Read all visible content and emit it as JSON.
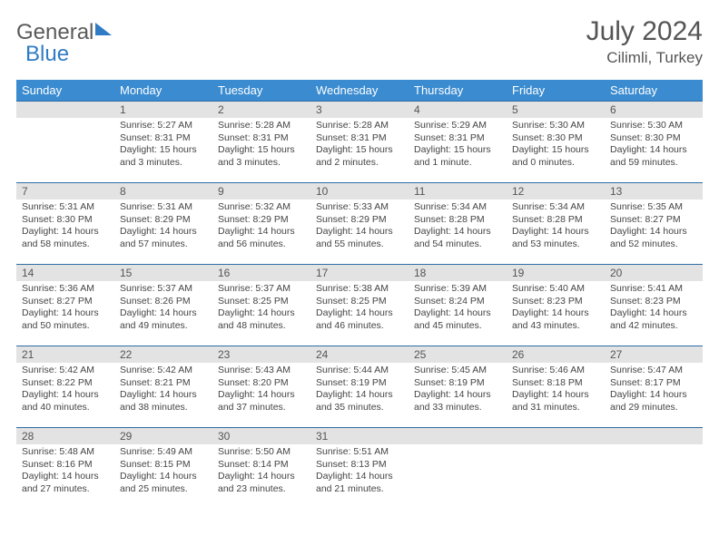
{
  "branding": {
    "name1": "General",
    "name2": "Blue"
  },
  "title": "July 2024",
  "location": "Cilimli, Turkey",
  "weekdays": [
    "Sunday",
    "Monday",
    "Tuesday",
    "Wednesday",
    "Thursday",
    "Friday",
    "Saturday"
  ],
  "colors": {
    "header_bg": "#3a8bd0",
    "daynum_bg": "#e3e3e3",
    "border": "#2e6da4",
    "brand_blue": "#2f7cc4",
    "text": "#444444"
  },
  "leading_blanks": 1,
  "days": [
    {
      "n": 1,
      "sunrise": "5:27 AM",
      "sunset": "8:31 PM",
      "daylight": "15 hours and 3 minutes."
    },
    {
      "n": 2,
      "sunrise": "5:28 AM",
      "sunset": "8:31 PM",
      "daylight": "15 hours and 3 minutes."
    },
    {
      "n": 3,
      "sunrise": "5:28 AM",
      "sunset": "8:31 PM",
      "daylight": "15 hours and 2 minutes."
    },
    {
      "n": 4,
      "sunrise": "5:29 AM",
      "sunset": "8:31 PM",
      "daylight": "15 hours and 1 minute."
    },
    {
      "n": 5,
      "sunrise": "5:30 AM",
      "sunset": "8:30 PM",
      "daylight": "15 hours and 0 minutes."
    },
    {
      "n": 6,
      "sunrise": "5:30 AM",
      "sunset": "8:30 PM",
      "daylight": "14 hours and 59 minutes."
    },
    {
      "n": 7,
      "sunrise": "5:31 AM",
      "sunset": "8:30 PM",
      "daylight": "14 hours and 58 minutes."
    },
    {
      "n": 8,
      "sunrise": "5:31 AM",
      "sunset": "8:29 PM",
      "daylight": "14 hours and 57 minutes."
    },
    {
      "n": 9,
      "sunrise": "5:32 AM",
      "sunset": "8:29 PM",
      "daylight": "14 hours and 56 minutes."
    },
    {
      "n": 10,
      "sunrise": "5:33 AM",
      "sunset": "8:29 PM",
      "daylight": "14 hours and 55 minutes."
    },
    {
      "n": 11,
      "sunrise": "5:34 AM",
      "sunset": "8:28 PM",
      "daylight": "14 hours and 54 minutes."
    },
    {
      "n": 12,
      "sunrise": "5:34 AM",
      "sunset": "8:28 PM",
      "daylight": "14 hours and 53 minutes."
    },
    {
      "n": 13,
      "sunrise": "5:35 AM",
      "sunset": "8:27 PM",
      "daylight": "14 hours and 52 minutes."
    },
    {
      "n": 14,
      "sunrise": "5:36 AM",
      "sunset": "8:27 PM",
      "daylight": "14 hours and 50 minutes."
    },
    {
      "n": 15,
      "sunrise": "5:37 AM",
      "sunset": "8:26 PM",
      "daylight": "14 hours and 49 minutes."
    },
    {
      "n": 16,
      "sunrise": "5:37 AM",
      "sunset": "8:25 PM",
      "daylight": "14 hours and 48 minutes."
    },
    {
      "n": 17,
      "sunrise": "5:38 AM",
      "sunset": "8:25 PM",
      "daylight": "14 hours and 46 minutes."
    },
    {
      "n": 18,
      "sunrise": "5:39 AM",
      "sunset": "8:24 PM",
      "daylight": "14 hours and 45 minutes."
    },
    {
      "n": 19,
      "sunrise": "5:40 AM",
      "sunset": "8:23 PM",
      "daylight": "14 hours and 43 minutes."
    },
    {
      "n": 20,
      "sunrise": "5:41 AM",
      "sunset": "8:23 PM",
      "daylight": "14 hours and 42 minutes."
    },
    {
      "n": 21,
      "sunrise": "5:42 AM",
      "sunset": "8:22 PM",
      "daylight": "14 hours and 40 minutes."
    },
    {
      "n": 22,
      "sunrise": "5:42 AM",
      "sunset": "8:21 PM",
      "daylight": "14 hours and 38 minutes."
    },
    {
      "n": 23,
      "sunrise": "5:43 AM",
      "sunset": "8:20 PM",
      "daylight": "14 hours and 37 minutes."
    },
    {
      "n": 24,
      "sunrise": "5:44 AM",
      "sunset": "8:19 PM",
      "daylight": "14 hours and 35 minutes."
    },
    {
      "n": 25,
      "sunrise": "5:45 AM",
      "sunset": "8:19 PM",
      "daylight": "14 hours and 33 minutes."
    },
    {
      "n": 26,
      "sunrise": "5:46 AM",
      "sunset": "8:18 PM",
      "daylight": "14 hours and 31 minutes."
    },
    {
      "n": 27,
      "sunrise": "5:47 AM",
      "sunset": "8:17 PM",
      "daylight": "14 hours and 29 minutes."
    },
    {
      "n": 28,
      "sunrise": "5:48 AM",
      "sunset": "8:16 PM",
      "daylight": "14 hours and 27 minutes."
    },
    {
      "n": 29,
      "sunrise": "5:49 AM",
      "sunset": "8:15 PM",
      "daylight": "14 hours and 25 minutes."
    },
    {
      "n": 30,
      "sunrise": "5:50 AM",
      "sunset": "8:14 PM",
      "daylight": "14 hours and 23 minutes."
    },
    {
      "n": 31,
      "sunrise": "5:51 AM",
      "sunset": "8:13 PM",
      "daylight": "14 hours and 21 minutes."
    }
  ],
  "labels": {
    "sunrise": "Sunrise:",
    "sunset": "Sunset:",
    "daylight": "Daylight:"
  }
}
